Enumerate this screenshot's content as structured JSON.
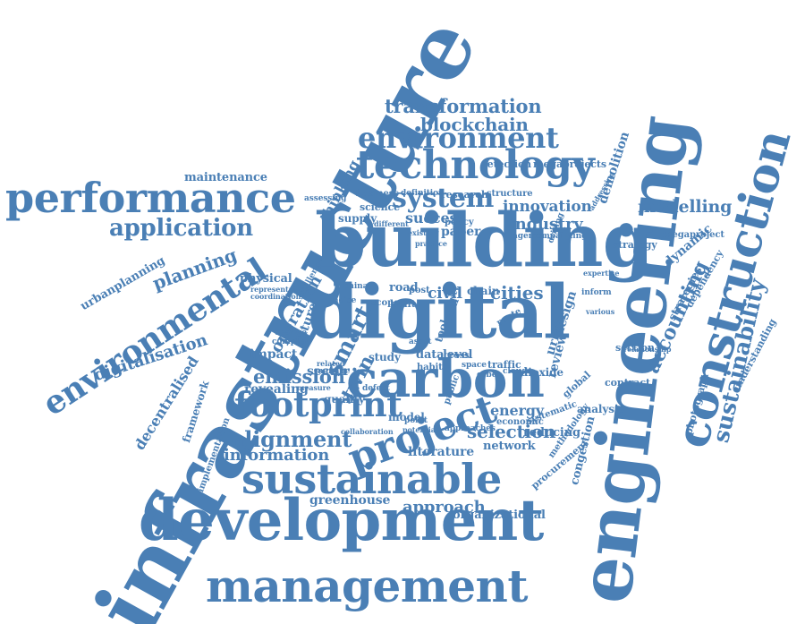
{
  "word_cloud": {
    "color": "#4a7fb5",
    "words": [
      {
        "id": "infrastructure",
        "text": "infrastructure"
      },
      {
        "id": "engineering",
        "text": "engineering"
      },
      {
        "id": "development",
        "text": "development"
      },
      {
        "id": "management",
        "text": "management"
      },
      {
        "id": "building",
        "text": "building"
      },
      {
        "id": "digital",
        "text": "digital"
      },
      {
        "id": "construction",
        "text": "construction"
      },
      {
        "id": "sustainable",
        "text": "sustainable"
      },
      {
        "id": "carbon",
        "text": "carbon"
      },
      {
        "id": "project",
        "text": "project"
      },
      {
        "id": "performance",
        "text": "performance"
      },
      {
        "id": "technology",
        "text": "technology"
      },
      {
        "id": "environment",
        "text": "environment"
      },
      {
        "id": "environmental",
        "text": "environmental"
      },
      {
        "id": "footprint",
        "text": "footprint"
      },
      {
        "id": "sustainability",
        "text": "sustainability"
      },
      {
        "id": "system",
        "text": "system"
      },
      {
        "id": "application",
        "text": "application"
      },
      {
        "id": "alignment",
        "text": "alignment"
      },
      {
        "id": "smart",
        "text": "smart"
      },
      {
        "id": "emission",
        "text": "emission"
      },
      {
        "id": "transformation",
        "text": "transformation"
      },
      {
        "id": "blockchain",
        "text": "blockchain"
      },
      {
        "id": "planning",
        "text": "planning"
      },
      {
        "id": "modelling",
        "text": "modelling"
      },
      {
        "id": "accounting",
        "text": "accounting"
      },
      {
        "id": "digitalisation",
        "text": "digitalisation"
      },
      {
        "id": "innovation",
        "text": "innovation"
      },
      {
        "id": "industry",
        "text": "industry"
      },
      {
        "id": "cities",
        "text": "cities"
      },
      {
        "id": "information",
        "text": "information"
      },
      {
        "id": "selection",
        "text": "selection"
      },
      {
        "id": "approach",
        "text": "approach"
      },
      {
        "id": "greenhouse",
        "text": "greenhouse"
      },
      {
        "id": "organizational",
        "text": "organizational"
      },
      {
        "id": "literature",
        "text": "literature"
      },
      {
        "id": "network",
        "text": "network"
      },
      {
        "id": "energy",
        "text": "energy"
      },
      {
        "id": "decentralised",
        "text": "decentralised"
      },
      {
        "id": "operation",
        "text": "operation"
      },
      {
        "id": "twin",
        "text": "twin"
      },
      {
        "id": "demolition",
        "text": "demolition"
      },
      {
        "id": "success",
        "text": "success"
      },
      {
        "id": "maintenance",
        "text": "maintenance"
      },
      {
        "id": "urbanplanning",
        "text": "urbanplanning"
      },
      {
        "id": "physical",
        "text": "physical"
      },
      {
        "id": "impact",
        "text": "impact"
      },
      {
        "id": "revealing",
        "text": "revealing"
      },
      {
        "id": "quality",
        "text": "quality"
      },
      {
        "id": "thinking",
        "text": "thinking"
      },
      {
        "id": "future",
        "text": "future"
      },
      {
        "id": "road",
        "text": "road"
      },
      {
        "id": "civil",
        "text": "civil"
      },
      {
        "id": "data",
        "text": "data"
      },
      {
        "id": "level",
        "text": "level"
      },
      {
        "id": "sector",
        "text": "sector"
      },
      {
        "id": "study",
        "text": "study"
      },
      {
        "id": "paper",
        "text": "paper"
      },
      {
        "id": "supply",
        "text": "supply"
      },
      {
        "id": "science",
        "text": "science"
      },
      {
        "id": "business",
        "text": "business"
      },
      {
        "id": "research",
        "text": "research"
      },
      {
        "id": "structure",
        "text": "structure"
      },
      {
        "id": "detection",
        "text": "detection"
      },
      {
        "id": "megaprojects",
        "text": "megaprojects"
      },
      {
        "id": "megaproject",
        "text": "megaproject"
      },
      {
        "id": "strategy",
        "text": "strategy"
      },
      {
        "id": "dynamic",
        "text": "dynamic"
      },
      {
        "id": "dependency",
        "text": "dependency"
      },
      {
        "id": "strategies",
        "text": "strategies"
      },
      {
        "id": "photograph",
        "text": "photograph"
      },
      {
        "id": "understanding",
        "text": "understanding"
      },
      {
        "id": "contract",
        "text": "contract"
      },
      {
        "id": "analysis",
        "text": "analysis"
      },
      {
        "id": "congestion",
        "text": "congestion"
      },
      {
        "id": "procurement",
        "text": "procurement"
      },
      {
        "id": "methodology",
        "text": "methodology"
      },
      {
        "id": "section",
        "text": "section"
      },
      {
        "id": "design",
        "text": "design"
      },
      {
        "id": "review",
        "text": "review"
      },
      {
        "id": "urban",
        "text": "urban"
      },
      {
        "id": "global",
        "text": "global"
      },
      {
        "id": "traffic",
        "text": "traffic"
      },
      {
        "id": "dioxide",
        "text": "dioxide"
      },
      {
        "id": "reducing",
        "text": "reducing"
      },
      {
        "id": "economic",
        "text": "economic"
      },
      {
        "id": "systematic",
        "text": "systematic"
      },
      {
        "id": "framework",
        "text": "framework"
      },
      {
        "id": "implementation",
        "text": "implementation"
      },
      {
        "id": "chain",
        "text": "chain"
      },
      {
        "id": "goal",
        "text": "goal"
      },
      {
        "id": "tool",
        "text": "tool"
      },
      {
        "id": "habit",
        "text": "habit"
      },
      {
        "id": "model",
        "text": "model"
      },
      {
        "id": "public",
        "text": "public"
      },
      {
        "id": "defect",
        "text": "defect"
      },
      {
        "id": "manage",
        "text": "manage"
      },
      {
        "id": "point",
        "text": "point"
      },
      {
        "id": "change",
        "text": "change"
      },
      {
        "id": "complex",
        "text": "complex"
      },
      {
        "id": "built",
        "text": "built"
      },
      {
        "id": "scope",
        "text": "scope"
      },
      {
        "id": "policy",
        "text": "policy"
      },
      {
        "id": "definition",
        "text": "definition"
      },
      {
        "id": "company",
        "text": "company"
      },
      {
        "id": "agenda",
        "text": "agenda"
      },
      {
        "id": "fitting",
        "text": "fitting"
      },
      {
        "id": "expertise",
        "text": "expertise"
      },
      {
        "id": "inform",
        "text": "inform"
      },
      {
        "id": "cross",
        "text": "cross"
      },
      {
        "id": "space",
        "text": "space"
      },
      {
        "id": "cyber",
        "text": "cyber"
      },
      {
        "id": "cloud",
        "text": "cloud"
      },
      {
        "id": "route",
        "text": "route"
      },
      {
        "id": "approaches",
        "text": "approaches"
      },
      {
        "id": "city",
        "text": "city"
      },
      {
        "id": "post",
        "text": "post"
      },
      {
        "id": "different",
        "text": "different"
      },
      {
        "id": "china",
        "text": "china"
      },
      {
        "id": "noise",
        "text": "noise"
      },
      {
        "id": "asset",
        "text": "asset"
      },
      {
        "id": "challenge",
        "text": "challenge"
      },
      {
        "id": "assessing",
        "text": "assessing"
      },
      {
        "id": "relationship",
        "text": "relationship"
      },
      {
        "id": "representation",
        "text": "representation"
      },
      {
        "id": "coordination",
        "text": "coordination"
      },
      {
        "id": "driving",
        "text": "driving"
      },
      {
        "id": "related",
        "text": "related"
      },
      {
        "id": "measure",
        "text": "measure"
      },
      {
        "id": "existing",
        "text": "existing"
      },
      {
        "id": "potential",
        "text": "potential"
      },
      {
        "id": "collaboration",
        "text": "collaboration"
      },
      {
        "id": "practice",
        "text": "practice"
      },
      {
        "id": "various",
        "text": "various"
      },
      {
        "id": "addressing",
        "text": "addressing"
      }
    ]
  }
}
